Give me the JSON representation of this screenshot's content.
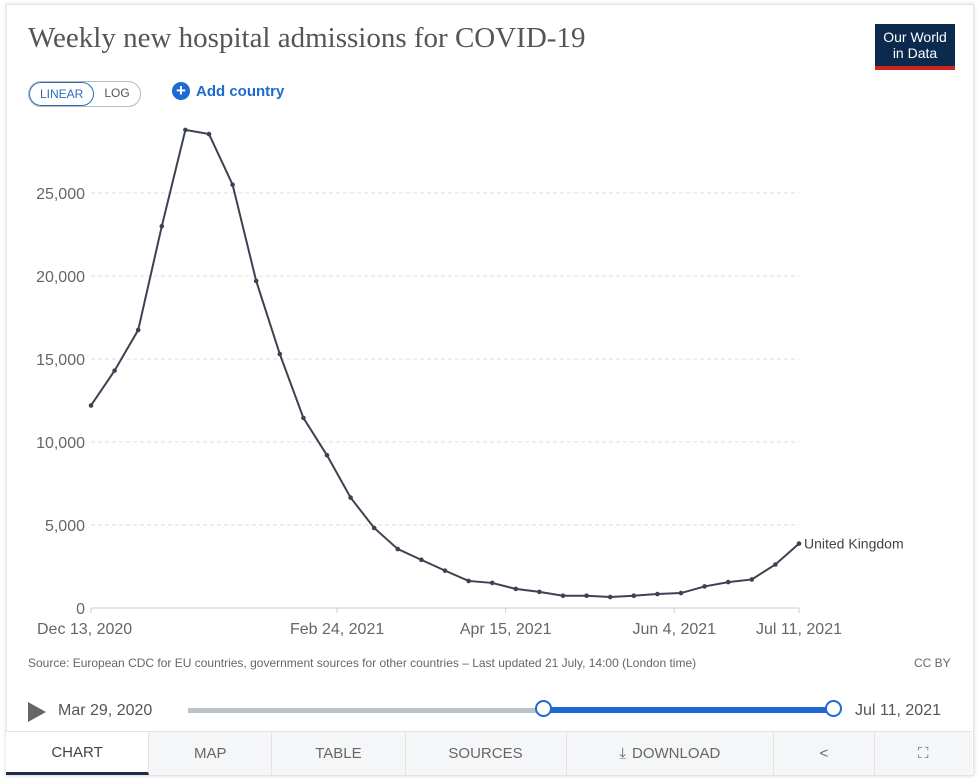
{
  "header": {
    "title": "Weekly new hospital admissions for COVID-19",
    "logo": "Our World in Data",
    "scale_options": [
      "LINEAR",
      "LOG"
    ],
    "scale_selected": "LINEAR",
    "add_country": "Add country"
  },
  "chart_data": {
    "type": "line",
    "title": "Weekly new hospital admissions for COVID-19",
    "xlim": [
      "2020-12-13",
      "2021-07-11"
    ],
    "ylim": [
      0,
      30000
    ],
    "grid": "horizontal dashed",
    "x_tick_labels": [
      {
        "date": "2020-12-13",
        "label": "Dec 13, 2020"
      },
      {
        "date": "2021-02-24",
        "label": "Feb 24, 2021"
      },
      {
        "date": "2021-04-15",
        "label": "Apr 15, 2021"
      },
      {
        "date": "2021-06-04",
        "label": "Jun 4, 2021"
      },
      {
        "date": "2021-07-11",
        "label": "Jul 11, 2021"
      }
    ],
    "y_ticks": [
      0,
      5000,
      10000,
      15000,
      20000,
      25000
    ],
    "y_tick_labels": [
      "0",
      "5,000",
      "10,000",
      "15,000",
      "20,000",
      "25,000"
    ],
    "series": [
      {
        "name": "United Kingdom",
        "color": "#3b4252",
        "x": [
          "2020-12-13",
          "2020-12-20",
          "2020-12-27",
          "2021-01-03",
          "2021-01-10",
          "2021-01-17",
          "2021-01-24",
          "2021-01-31",
          "2021-02-07",
          "2021-02-14",
          "2021-02-21",
          "2021-02-28",
          "2021-03-07",
          "2021-03-14",
          "2021-03-21",
          "2021-03-28",
          "2021-04-04",
          "2021-04-11",
          "2021-04-18",
          "2021-04-25",
          "2021-05-02",
          "2021-05-09",
          "2021-05-16",
          "2021-05-23",
          "2021-05-30",
          "2021-06-06",
          "2021-06-13",
          "2021-06-20",
          "2021-06-27",
          "2021-07-04",
          "2021-07-11"
        ],
        "values": [
          12200,
          14300,
          16750,
          23000,
          28800,
          28550,
          25500,
          19700,
          15300,
          11450,
          9200,
          6650,
          4820,
          3550,
          2900,
          2250,
          1630,
          1510,
          1150,
          970,
          740,
          740,
          660,
          740,
          840,
          900,
          1300,
          1560,
          1720,
          2620,
          3880
        ]
      }
    ]
  },
  "footer": {
    "source": "Source: European CDC for EU countries, government sources for other countries – Last updated 21 July, 14:00 (London time)",
    "license": "CC BY"
  },
  "timeline": {
    "start": "Mar 29, 2020",
    "end": "Jul 11, 2021"
  },
  "tabs": [
    {
      "label": "CHART",
      "active": true
    },
    {
      "label": "MAP"
    },
    {
      "label": "TABLE"
    },
    {
      "label": "SOURCES"
    },
    {
      "label": "DOWNLOAD",
      "icon": "download-icon"
    },
    {
      "label": "",
      "icon": "share-icon"
    },
    {
      "label": "",
      "icon": "fullscreen-icon"
    }
  ]
}
